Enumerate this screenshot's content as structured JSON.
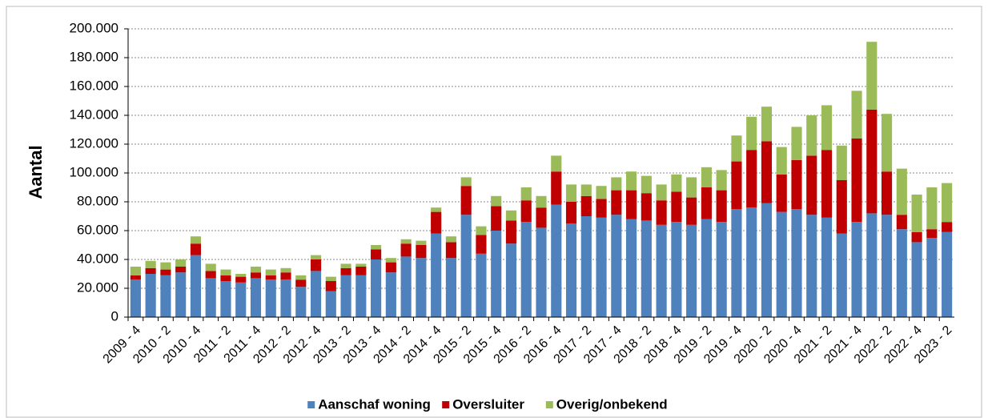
{
  "chart_data": {
    "type": "stacked_bar",
    "y_label": "Aantal",
    "categories": [
      "2009 - 4",
      null,
      "2010 - 2",
      null,
      "2010 - 4",
      null,
      "2011 - 2",
      null,
      "2011 - 4",
      null,
      "2012 - 2",
      null,
      "2012 - 4",
      null,
      "2013 - 2",
      null,
      "2013 - 4",
      null,
      "2014 - 2",
      null,
      "2014 - 4",
      null,
      "2015 - 2",
      null,
      "2015 - 4",
      null,
      "2016 - 2",
      null,
      "2016 - 4",
      null,
      "2017 - 2",
      null,
      "2017 - 4",
      null,
      "2018 - 2",
      null,
      "2018 - 4",
      null,
      "2019 - 2",
      null,
      "2019 - 4",
      null,
      "2020 - 2",
      null,
      "2020 - 4",
      null,
      "2021 - 2",
      null,
      "2021 - 4",
      null,
      "2022 - 2",
      null,
      "2022 - 4",
      null,
      "2023 - 2"
    ],
    "series": [
      {
        "name": "Aanschaf woning",
        "color": "#4f81bd",
        "values": [
          26000,
          30000,
          29000,
          31000,
          43000,
          27000,
          25000,
          24000,
          27000,
          26000,
          26000,
          21000,
          32000,
          18000,
          29000,
          29000,
          40000,
          31000,
          42000,
          41000,
          58000,
          41000,
          71000,
          44000,
          60000,
          51000,
          66000,
          62000,
          78000,
          65000,
          70000,
          69000,
          71000,
          68000,
          67000,
          64000,
          66000,
          64000,
          68000,
          66000,
          75000,
          76000,
          79000,
          73000,
          75000,
          71000,
          69000,
          58000,
          66000,
          72000,
          71000,
          61000,
          52000,
          55000,
          59000
        ]
      },
      {
        "name": "Oversluiter",
        "color": "#c00000",
        "values": [
          3000,
          4000,
          4000,
          4000,
          8000,
          5000,
          4000,
          4000,
          4000,
          3000,
          5000,
          5000,
          8000,
          7000,
          5000,
          6000,
          7000,
          7000,
          9000,
          9000,
          15000,
          11000,
          20000,
          13000,
          17000,
          16000,
          15000,
          14000,
          23000,
          15000,
          14000,
          13000,
          17000,
          20000,
          19000,
          17000,
          21000,
          19000,
          22000,
          22000,
          33000,
          40000,
          43000,
          26000,
          34000,
          41000,
          47000,
          37000,
          58000,
          72000,
          30000,
          10000,
          7000,
          6000,
          7000
        ]
      },
      {
        "name": "Overig/onbekend",
        "color": "#9bbb59",
        "values": [
          6000,
          5000,
          5000,
          5000,
          5000,
          5000,
          4000,
          2000,
          4000,
          4000,
          3000,
          3000,
          3000,
          3000,
          3000,
          2000,
          3000,
          3000,
          3000,
          3000,
          3000,
          4000,
          6000,
          6000,
          7000,
          7000,
          9000,
          8000,
          11000,
          12000,
          8000,
          9000,
          9000,
          13000,
          12000,
          11000,
          12000,
          14000,
          14000,
          14000,
          18000,
          23000,
          24000,
          19000,
          23000,
          28000,
          31000,
          24000,
          33000,
          47000,
          40000,
          32000,
          26000,
          29000,
          27000
        ]
      }
    ],
    "ylim": [
      0,
      200000
    ],
    "yticks": [
      0,
      {
        "value": 20000,
        "label": "20.000"
      },
      {
        "value": 40000,
        "label": "40.000"
      },
      {
        "value": 60000,
        "label": "60.000"
      },
      {
        "value": 80000,
        "label": "80.000"
      },
      {
        "value": 100000,
        "label": "100.000"
      },
      {
        "value": 120000,
        "label": "120.000"
      },
      {
        "value": 140000,
        "label": "140.000"
      },
      {
        "value": 160000,
        "label": "160.000"
      },
      {
        "value": 180000,
        "label": "180.000"
      },
      {
        "value": 200000,
        "label": "200.000"
      }
    ],
    "grid": true,
    "legend": "bottom"
  }
}
